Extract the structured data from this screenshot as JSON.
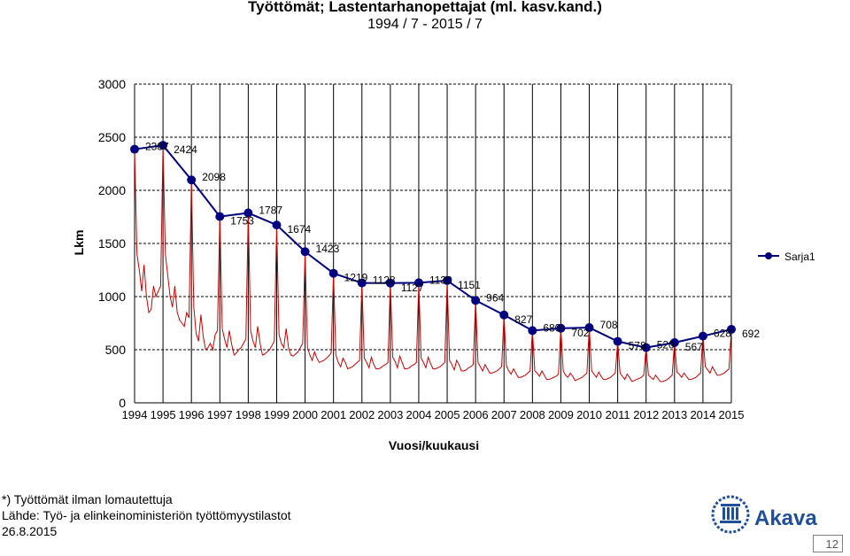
{
  "chart_data": {
    "type": "line",
    "title": "Työttömät; Lastentarhanopettajat (ml. kasv.kand.)",
    "subtitle": "1994 / 7 - 2015 / 7",
    "xlabel": "Vuosi/kuukausi",
    "ylabel": "Lkm",
    "ylim": [
      0,
      3000
    ],
    "yticks": [
      0,
      500,
      1000,
      1500,
      2000,
      2500,
      3000
    ],
    "grid": true,
    "legend_position": "right",
    "categories": [
      "1994",
      "1995",
      "1996",
      "1997",
      "1998",
      "1999",
      "2000",
      "2001",
      "2002",
      "2003",
      "2004",
      "2005",
      "2006",
      "2007",
      "2008",
      "2009",
      "2010",
      "2011",
      "2012",
      "2013",
      "2014",
      "2015"
    ],
    "series": [
      {
        "name": "Sarja1",
        "color": "#000080",
        "values": [
          2387,
          2424,
          2098,
          1753,
          1787,
          1674,
          1423,
          1219,
          1128,
          1127,
          1130,
          1151,
          964,
          827,
          680,
          702,
          708,
          578,
          520,
          567,
          628,
          692
        ],
        "labels": [
          "2387",
          "2424",
          "2098",
          "1753",
          "1787",
          "1674",
          "1423",
          "1219",
          "1128",
          "1127",
          "1130",
          "1151",
          "964",
          "827",
          "680",
          "702",
          "708",
          "578",
          "520",
          "567",
          "628",
          "692"
        ]
      },
      {
        "color": "#cc0000",
        "monthly_pattern": "yearly peak in July, winter minimum",
        "values_by_year": [
          [
            2387,
            1400,
            1250,
            1050,
            1300,
            1000,
            850,
            880,
            1100,
            1000,
            1050,
            1100
          ],
          [
            2424,
            1400,
            1200,
            1000,
            900,
            1100,
            850,
            780,
            750,
            720,
            850,
            800
          ],
          [
            2098,
            900,
            650,
            580,
            830,
            620,
            500,
            520,
            560,
            500,
            640,
            680
          ],
          [
            1753,
            700,
            600,
            520,
            680,
            550,
            450,
            470,
            500,
            520,
            560,
            600
          ],
          [
            1787,
            680,
            580,
            520,
            720,
            560,
            450,
            460,
            480,
            500,
            540,
            580
          ],
          [
            1674,
            640,
            560,
            520,
            700,
            520,
            450,
            440,
            460,
            480,
            520,
            560
          ],
          [
            1423,
            520,
            450,
            400,
            480,
            420,
            380,
            390,
            400,
            420,
            440,
            470
          ],
          [
            1219,
            450,
            380,
            340,
            420,
            380,
            320,
            330,
            340,
            360,
            380,
            400
          ],
          [
            1128,
            420,
            380,
            330,
            430,
            360,
            320,
            320,
            330,
            350,
            360,
            380
          ],
          [
            1127,
            430,
            390,
            330,
            440,
            380,
            320,
            320,
            330,
            350,
            360,
            380
          ],
          [
            1130,
            420,
            380,
            330,
            430,
            370,
            320,
            320,
            330,
            340,
            360,
            380
          ],
          [
            1151,
            400,
            360,
            310,
            400,
            360,
            300,
            300,
            310,
            330,
            340,
            360
          ],
          [
            964,
            380,
            340,
            300,
            360,
            320,
            280,
            280,
            290,
            300,
            320,
            340
          ],
          [
            827,
            350,
            300,
            270,
            320,
            280,
            240,
            240,
            250,
            260,
            280,
            300
          ],
          [
            680,
            300,
            280,
            250,
            300,
            260,
            220,
            220,
            230,
            240,
            250,
            270
          ],
          [
            702,
            300,
            260,
            240,
            280,
            250,
            210,
            220,
            230,
            240,
            260,
            280
          ],
          [
            708,
            300,
            270,
            240,
            290,
            250,
            220,
            220,
            230,
            240,
            260,
            280
          ],
          [
            578,
            280,
            250,
            220,
            270,
            240,
            200,
            210,
            220,
            230,
            240,
            260
          ],
          [
            520,
            260,
            240,
            220,
            260,
            230,
            200,
            200,
            210,
            220,
            240,
            260
          ],
          [
            567,
            290,
            270,
            240,
            280,
            250,
            220,
            220,
            230,
            240,
            260,
            280
          ],
          [
            628,
            340,
            310,
            280,
            340,
            300,
            260,
            260,
            270,
            280,
            300,
            320
          ],
          [
            692
          ]
        ]
      }
    ]
  },
  "footer": {
    "note": "*) Työttömät ilman lomautettuja",
    "source": "Lähde: Työ- ja elinkeinoministeriön työttömyystilastot",
    "date": "26.8.2015",
    "brand": "Akava",
    "page": "12"
  }
}
